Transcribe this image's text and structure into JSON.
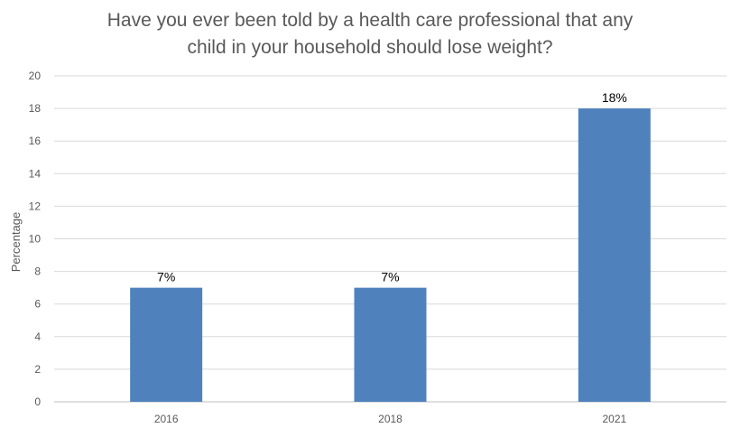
{
  "chart_data": {
    "type": "bar",
    "title_lines": [
      "Have you ever been told by a health care professional that any",
      "child in your household should lose weight?"
    ],
    "xlabel": "",
    "ylabel": "Percentage",
    "categories": [
      "2016",
      "2018",
      "2021"
    ],
    "values": [
      7,
      7,
      18
    ],
    "data_labels": [
      "7%",
      "7%",
      "18%"
    ],
    "ylim": [
      0,
      20
    ],
    "yticks": [
      0,
      2,
      4,
      6,
      8,
      10,
      12,
      14,
      16,
      18,
      20
    ],
    "grid": true,
    "legend": "none",
    "bar_color": "#4f81bd"
  }
}
